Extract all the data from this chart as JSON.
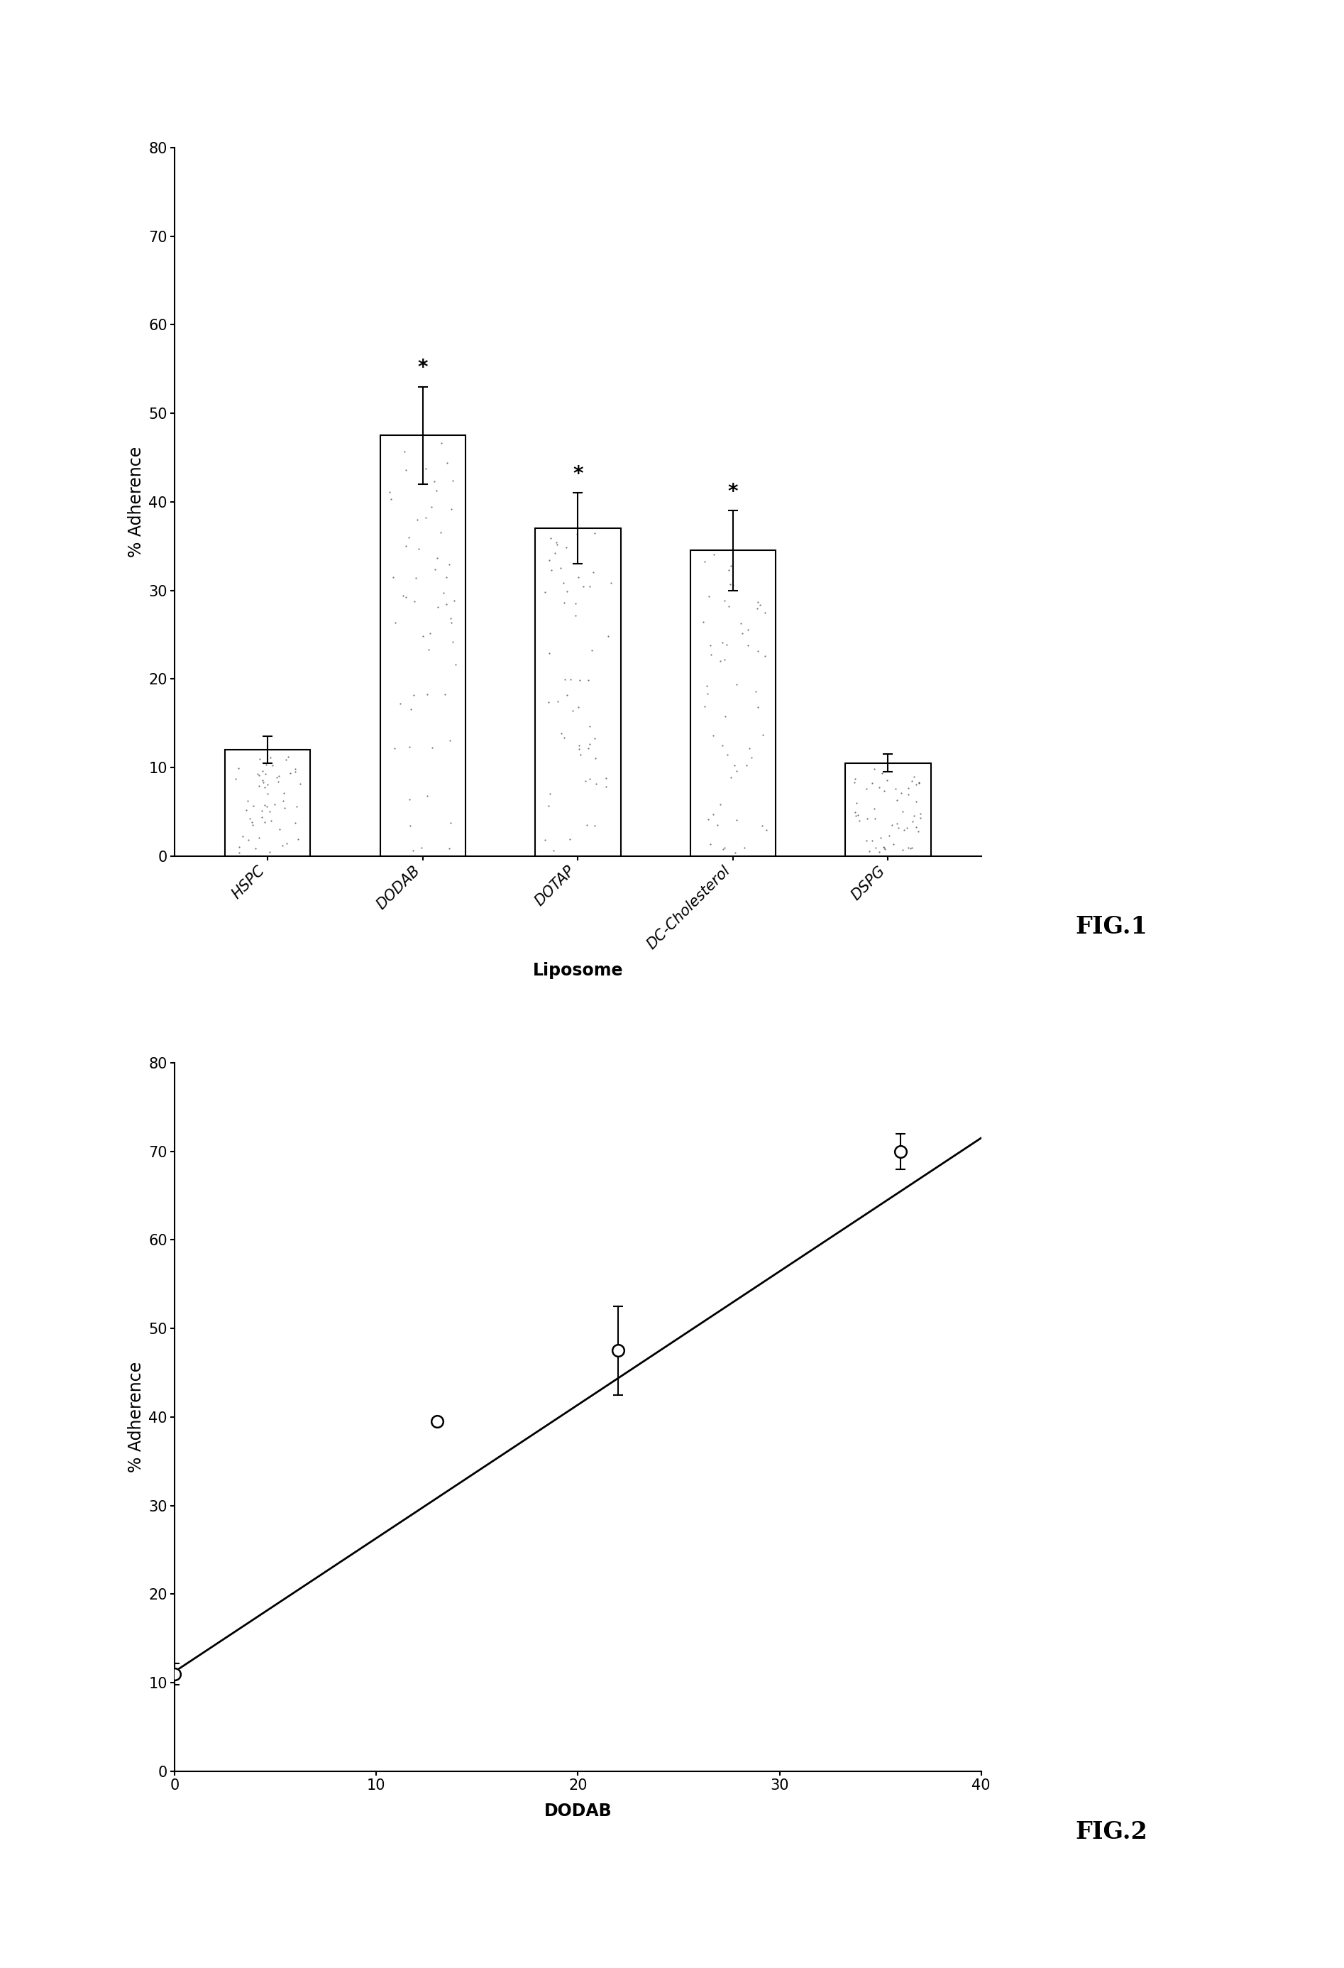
{
  "fig1": {
    "categories": [
      "HSPC",
      "DODAB",
      "DOTAP",
      "DC-Cholesterol",
      "DSPG"
    ],
    "values": [
      12.0,
      47.5,
      37.0,
      34.5,
      10.5
    ],
    "errors": [
      1.5,
      5.5,
      4.0,
      4.5,
      1.0
    ],
    "sig_stars": [
      false,
      true,
      true,
      true,
      false
    ],
    "ylabel": "% Adherence",
    "xlabel": "Liposome",
    "ylim": [
      0,
      80
    ],
    "yticks": [
      0,
      10,
      20,
      30,
      40,
      50,
      60,
      70,
      80
    ],
    "fig_label": "FIG.1",
    "bar_color": "#ffffff",
    "bar_edgecolor": "#000000",
    "bar_width": 0.55
  },
  "fig2": {
    "x": [
      0,
      13,
      22,
      36
    ],
    "y": [
      11.0,
      39.5,
      47.5,
      70.0
    ],
    "yerr": [
      1.2,
      0.0,
      5.0,
      2.0
    ],
    "line_x": [
      -0.5,
      40
    ],
    "line_y": [
      10.5,
      71.5
    ],
    "ylabel": "% Adherence",
    "xlabel": "DODAB",
    "xlim": [
      0,
      40
    ],
    "ylim": [
      0,
      80
    ],
    "yticks": [
      0,
      10,
      20,
      30,
      40,
      50,
      60,
      70,
      80
    ],
    "xticks": [
      0,
      10,
      20,
      30,
      40
    ],
    "fig_label": "FIG.2",
    "marker_color": "#ffffff",
    "marker_edgecolor": "#000000",
    "marker_size": 12
  },
  "bg_color": "#ffffff",
  "text_color": "#000000",
  "fontsize_tick": 15,
  "fontsize_label": 17,
  "fontsize_figlabel": 24
}
